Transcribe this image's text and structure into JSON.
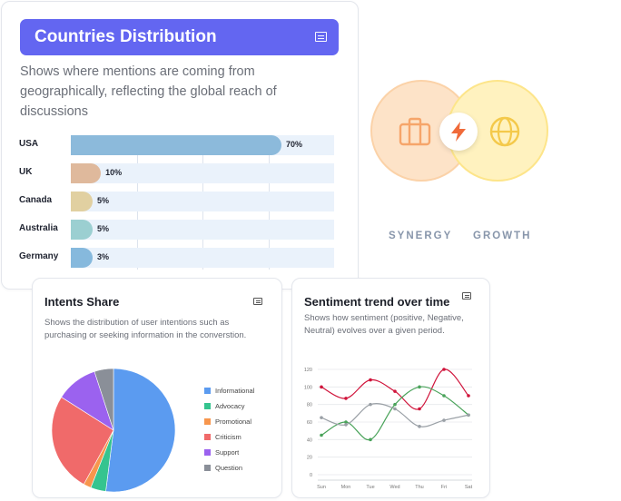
{
  "countries": {
    "title": "Countries Distribution",
    "description": "Shows where mentions are coming from geographically, reflecting the global reach of discussions",
    "icon": "list-card-icon"
  },
  "synergy": {
    "labels": [
      "SYNERGY",
      "GROWTH"
    ],
    "icons": [
      "briefcase-icon",
      "bolt-icon",
      "globe-icon"
    ],
    "colors": {
      "left_circle": "#fde3c8",
      "right_circle": "#fff2bf",
      "bolt": "#f06a3a"
    }
  },
  "intents": {
    "title": "Intents Share",
    "description": "Shows the distribution of user intentions such as purchasing or seeking information in the converstion.",
    "icon": "list-card-icon"
  },
  "sentiment": {
    "title": "Sentiment trend over time",
    "description": "Shows how sentiment (positive, Negative, Neutral) evolves over a given period.",
    "icon": "list-card-icon"
  },
  "chart_data": [
    {
      "type": "bar",
      "orientation": "horizontal",
      "title": "Countries Distribution",
      "categories": [
        "USA",
        "UK",
        "Canada",
        "Australia",
        "Germany"
      ],
      "values": [
        70,
        10,
        5,
        5,
        3
      ],
      "value_labels": [
        "70%",
        "10%",
        "5%",
        "5%",
        "3%"
      ],
      "colors": [
        "#8cbadb",
        "#dfb99c",
        "#e1d0a1",
        "#9bcfd1",
        "#86b9dd"
      ]
    },
    {
      "type": "pie",
      "title": "Intents Share",
      "categories": [
        "Informational",
        "Advocacy",
        "Promotional",
        "Criticism",
        "Support",
        "Question"
      ],
      "values": [
        52,
        4,
        2,
        26,
        11,
        5
      ],
      "colors": [
        "#5b9bf0",
        "#35c48f",
        "#f7964d",
        "#f06a6a",
        "#9b62ef",
        "#8a8f98"
      ]
    },
    {
      "type": "line",
      "title": "Sentiment trend over time",
      "x": [
        "Sun",
        "Mon",
        "Tue",
        "Wed",
        "Thu",
        "Fri",
        "Sat"
      ],
      "ylim": [
        0,
        120
      ],
      "yticks": [
        "0",
        "20",
        "40",
        "60",
        "80",
        "100",
        "120"
      ],
      "grid": true,
      "series": [
        {
          "values": [
            100,
            87,
            108,
            95,
            75,
            120,
            90
          ],
          "color": "#d0143b"
        },
        {
          "values": [
            45,
            60,
            40,
            80,
            100,
            90,
            68
          ],
          "color": "#4aa35a"
        },
        {
          "values": [
            65,
            57,
            80,
            75,
            55,
            62,
            68
          ],
          "color": "#9aa0a6"
        }
      ]
    }
  ]
}
